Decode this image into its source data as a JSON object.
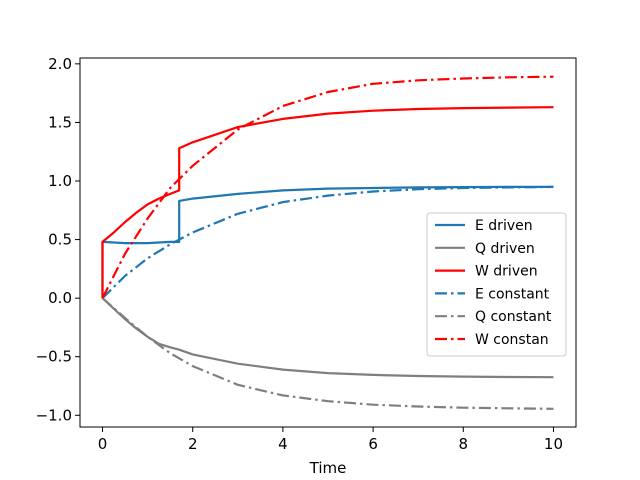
{
  "chart_data": {
    "type": "line",
    "title": "",
    "xlabel": "Time",
    "ylabel": "",
    "xlim": [
      -0.5,
      10.5
    ],
    "ylim": [
      -1.1,
      2.05
    ],
    "xticks": [
      0,
      2,
      4,
      6,
      8,
      10
    ],
    "xtick_labels": [
      "0",
      "2",
      "4",
      "6",
      "8",
      "10"
    ],
    "yticks": [
      -1.0,
      -0.5,
      0.0,
      0.5,
      1.0,
      1.5,
      2.0
    ],
    "ytick_labels": [
      "−1.0",
      "−0.5",
      "0.0",
      "0.5",
      "1.0",
      "1.5",
      "2.0"
    ],
    "grid": false,
    "legend_position": "center-right",
    "series": [
      {
        "name": "E driven",
        "color": "#1f77b4",
        "style": "solid",
        "x": [
          0,
          0,
          0.5,
          1.0,
          1.5,
          1.7,
          1.7,
          2,
          3,
          4,
          5,
          6,
          7,
          8,
          9,
          10
        ],
        "y": [
          0,
          0.48,
          0.47,
          0.47,
          0.48,
          0.48,
          0.83,
          0.85,
          0.89,
          0.92,
          0.935,
          0.94,
          0.945,
          0.948,
          0.95,
          0.95
        ]
      },
      {
        "name": "Q driven",
        "color": "#7f7f7f",
        "style": "solid",
        "x": [
          0,
          0.25,
          0.5,
          0.75,
          1.0,
          1.25,
          1.5,
          1.7,
          2,
          3,
          4,
          5,
          6,
          7,
          8,
          9,
          10
        ],
        "y": [
          0,
          -0.09,
          -0.18,
          -0.26,
          -0.33,
          -0.39,
          -0.42,
          -0.44,
          -0.48,
          -0.56,
          -0.61,
          -0.64,
          -0.655,
          -0.665,
          -0.67,
          -0.673,
          -0.675
        ]
      },
      {
        "name": "W driven",
        "color": "#ff0000",
        "style": "solid",
        "x": [
          0,
          0,
          0.25,
          0.5,
          0.75,
          1.0,
          1.25,
          1.5,
          1.7,
          1.7,
          2,
          3,
          4,
          5,
          6,
          7,
          8,
          9,
          10
        ],
        "y": [
          0,
          0.48,
          0.56,
          0.65,
          0.73,
          0.8,
          0.85,
          0.89,
          0.92,
          1.28,
          1.33,
          1.46,
          1.53,
          1.575,
          1.6,
          1.615,
          1.622,
          1.627,
          1.63
        ]
      },
      {
        "name": "E constant",
        "color": "#1f77b4",
        "style": "dashdot",
        "x": [
          0,
          0.5,
          1.0,
          1.5,
          2,
          3,
          4,
          5,
          6,
          7,
          8,
          9,
          10
        ],
        "y": [
          0,
          0.19,
          0.34,
          0.46,
          0.56,
          0.72,
          0.82,
          0.875,
          0.91,
          0.93,
          0.94,
          0.945,
          0.95
        ]
      },
      {
        "name": "Q constant",
        "color": "#7f7f7f",
        "style": "dashdot",
        "x": [
          0,
          0.5,
          1.0,
          1.5,
          2,
          3,
          4,
          5,
          6,
          7,
          8,
          9,
          10
        ],
        "y": [
          0,
          -0.17,
          -0.33,
          -0.47,
          -0.58,
          -0.74,
          -0.83,
          -0.88,
          -0.91,
          -0.925,
          -0.935,
          -0.94,
          -0.945
        ]
      },
      {
        "name": "W constan",
        "color": "#ff0000",
        "style": "dashdot",
        "x": [
          0,
          0.5,
          1.0,
          1.5,
          2,
          3,
          4,
          5,
          6,
          7,
          8,
          9,
          10
        ],
        "y": [
          0,
          0.38,
          0.68,
          0.94,
          1.13,
          1.44,
          1.64,
          1.76,
          1.83,
          1.86,
          1.875,
          1.885,
          1.89
        ]
      }
    ]
  }
}
